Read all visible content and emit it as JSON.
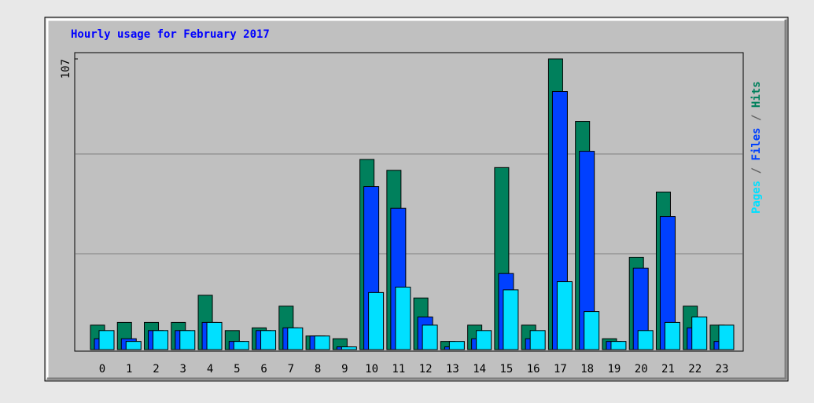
{
  "chart_data": {
    "type": "bar",
    "title": "Hourly usage for February 2017",
    "categories": [
      "0",
      "1",
      "2",
      "3",
      "4",
      "5",
      "6",
      "7",
      "8",
      "9",
      "10",
      "11",
      "12",
      "13",
      "14",
      "15",
      "16",
      "17",
      "18",
      "19",
      "20",
      "21",
      "22",
      "23"
    ],
    "series": [
      {
        "name": "Hits",
        "color": "#00805c",
        "values": [
          9,
          10,
          10,
          10,
          20,
          7,
          8,
          16,
          5,
          4,
          70,
          66,
          19,
          3,
          9,
          67,
          9,
          107,
          84,
          4,
          34,
          58,
          16,
          9
        ]
      },
      {
        "name": "Files",
        "color": "#0040ff",
        "values": [
          4,
          4,
          7,
          7,
          10,
          3,
          7,
          8,
          5,
          1,
          60,
          52,
          12,
          1,
          4,
          28,
          4,
          95,
          73,
          3,
          30,
          49,
          8,
          3
        ]
      },
      {
        "name": "Pages",
        "color": "#00e0ff",
        "values": [
          7,
          3,
          7,
          7,
          10,
          3,
          7,
          8,
          5,
          1,
          21,
          23,
          9,
          3,
          7,
          22,
          7,
          25,
          14,
          3,
          7,
          10,
          12,
          9
        ]
      }
    ],
    "legend_separator": "/",
    "ylim": [
      0,
      107
    ],
    "yticks": [
      107
    ]
  }
}
